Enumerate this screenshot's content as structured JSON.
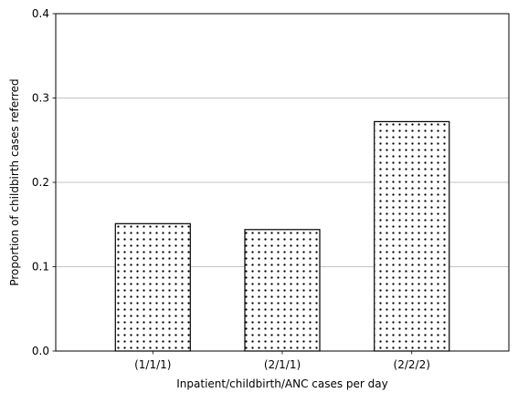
{
  "chart_data": {
    "type": "bar",
    "categories": [
      "(1/1/1)",
      "(2/1/1)",
      "(2/2/2)"
    ],
    "values": [
      0.151,
      0.144,
      0.272
    ],
    "title": "",
    "xlabel": "Inpatient/childbirth/ANC cases per day",
    "ylabel": "Proportion of childbirth cases referred",
    "ylim": [
      0,
      0.4
    ],
    "yticks": [
      "0.0",
      "0.1",
      "0.2",
      "0.3",
      "0.4"
    ],
    "grid": "horizontal",
    "bar_fill": "dotted hatch",
    "colors": {
      "bar_face": "#ffffff",
      "bar_edge": "#000000",
      "dots": "#000000",
      "grid": "#b0b0b0"
    }
  }
}
